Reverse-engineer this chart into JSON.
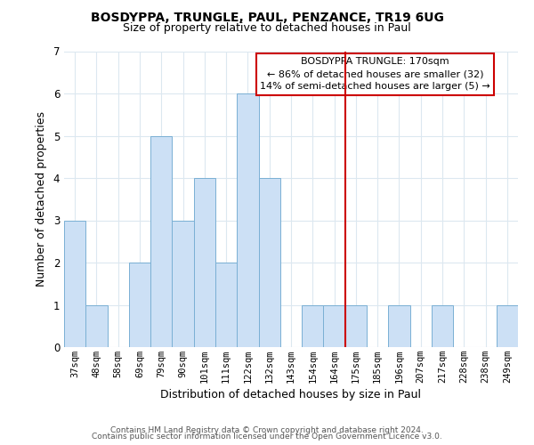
{
  "title": "BOSDYPPA, TRUNGLE, PAUL, PENZANCE, TR19 6UG",
  "subtitle": "Size of property relative to detached houses in Paul",
  "xlabel": "Distribution of detached houses by size in Paul",
  "ylabel": "Number of detached properties",
  "bar_color": "#cce0f5",
  "bar_edge_color": "#7ab0d4",
  "marker_line_color": "#cc0000",
  "categories": [
    "37sqm",
    "48sqm",
    "58sqm",
    "69sqm",
    "79sqm",
    "90sqm",
    "101sqm",
    "111sqm",
    "122sqm",
    "132sqm",
    "143sqm",
    "154sqm",
    "164sqm",
    "175sqm",
    "185sqm",
    "196sqm",
    "207sqm",
    "217sqm",
    "228sqm",
    "238sqm",
    "249sqm"
  ],
  "values": [
    3,
    1,
    0,
    2,
    5,
    3,
    4,
    2,
    6,
    4,
    0,
    1,
    1,
    1,
    0,
    1,
    0,
    1,
    0,
    0,
    1
  ],
  "marker_index": 13,
  "ylim": [
    0,
    7
  ],
  "yticks": [
    0,
    1,
    2,
    3,
    4,
    5,
    6,
    7
  ],
  "annotation_title": "BOSDYPPA TRUNGLE: 170sqm",
  "annotation_line1": "← 86% of detached houses are smaller (32)",
  "annotation_line2": "14% of semi-detached houses are larger (5) →",
  "footer1": "Contains HM Land Registry data © Crown copyright and database right 2024.",
  "footer2": "Contains public sector information licensed under the Open Government Licence v3.0.",
  "grid_color": "#dce8f0",
  "background_color": "#ffffff",
  "title_fontsize": 10,
  "subtitle_fontsize": 9,
  "axis_label_fontsize": 9,
  "tick_fontsize": 7.5,
  "annotation_fontsize": 8,
  "footer_fontsize": 6.5
}
